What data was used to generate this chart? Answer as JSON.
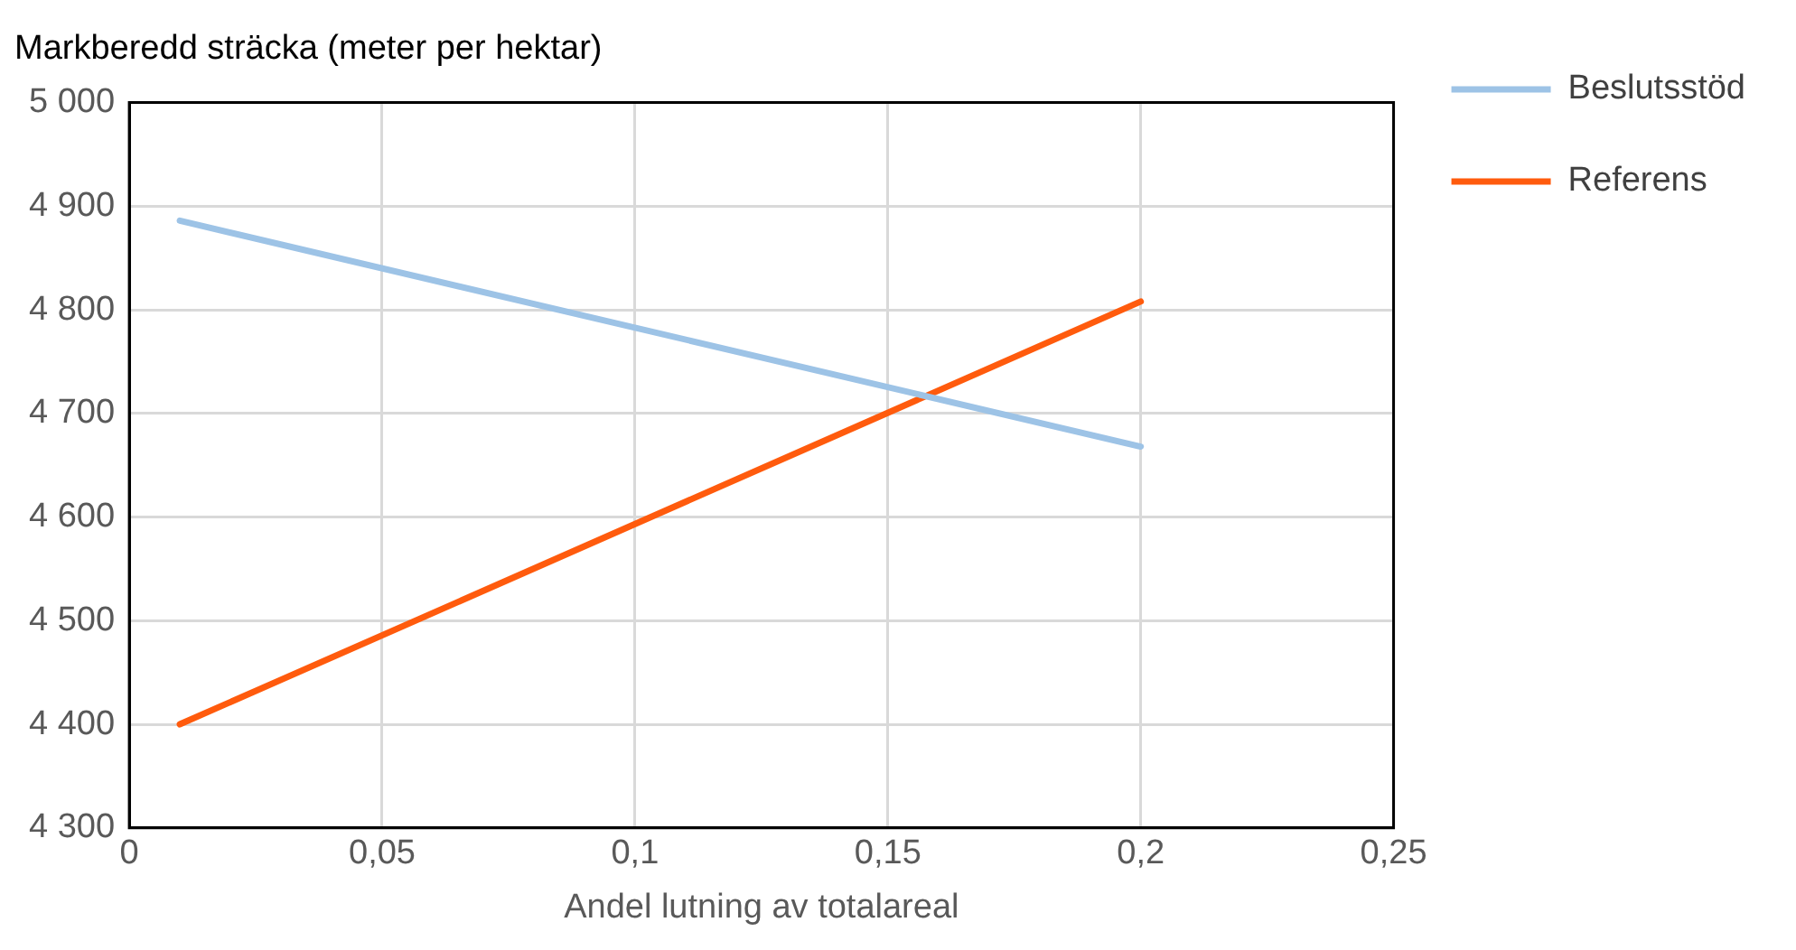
{
  "chart_data": {
    "type": "line",
    "ylabel": "Markberedd sträcka (meter per hektar)",
    "xlabel": "Andel lutning av totalareal",
    "x": [
      0.01,
      0.2
    ],
    "series": [
      {
        "name": "Beslutsstöd",
        "color": "#9dc3e6",
        "values": [
          4886,
          4668
        ]
      },
      {
        "name": "Referens",
        "color": "#ff5b0d",
        "values": [
          4400,
          4808
        ]
      }
    ],
    "xlim": [
      0,
      0.25
    ],
    "xticks": [
      0,
      {
        "value": 0.05,
        "label": "0,05"
      },
      {
        "value": 0.1,
        "label": "0,1"
      },
      {
        "value": 0.15,
        "label": "0,15"
      },
      {
        "value": 0.2,
        "label": "0,2"
      },
      {
        "value": 0.25,
        "label": "0,25"
      }
    ],
    "ylim": [
      4300,
      5000
    ],
    "yticks": [
      {
        "value": 4300,
        "label": "4 300"
      },
      {
        "value": 4400,
        "label": "4 400"
      },
      {
        "value": 4500,
        "label": "4 500"
      },
      {
        "value": 4600,
        "label": "4 600"
      },
      {
        "value": 4700,
        "label": "4 700"
      },
      {
        "value": 4800,
        "label": "4 800"
      },
      {
        "value": 4900,
        "label": "4 900"
      },
      {
        "value": 5000,
        "label": "5 000"
      }
    ],
    "grid": true,
    "legend": "right",
    "marker": "none",
    "line_style": "solid"
  }
}
